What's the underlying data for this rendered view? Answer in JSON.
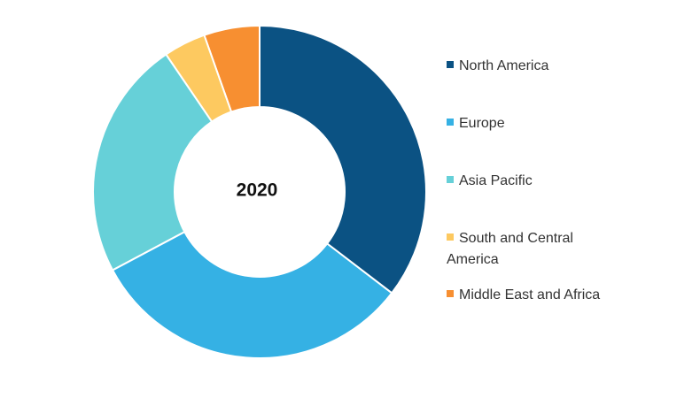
{
  "chart_data": {
    "type": "donut",
    "center_label": "2020",
    "categories": [
      "North America",
      "Europe",
      "Asia Pacific",
      "South and Central America",
      "Middle East and Africa"
    ],
    "values": [
      35.4,
      31.8,
      23.3,
      4.1,
      5.4
    ],
    "colors": [
      "#0b5283",
      "#35b1e4",
      "#66d0d8",
      "#fdc960",
      "#f78f31"
    ]
  }
}
